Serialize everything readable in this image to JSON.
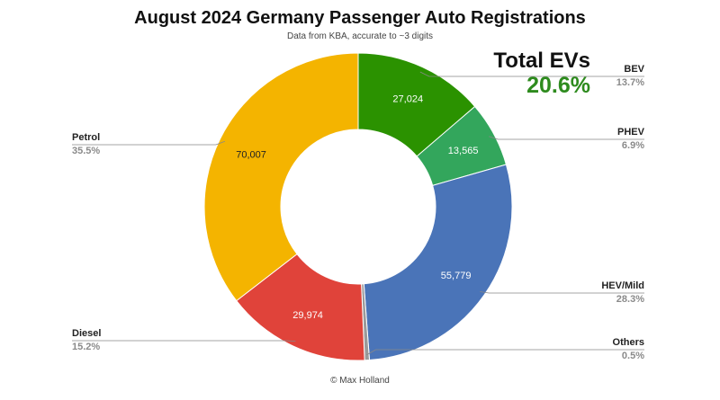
{
  "title": "August 2024 Germany Passenger Auto Registrations",
  "subtitle": "Data from KBA, accurate to ~3 digits",
  "credit": "© Max Holland",
  "callout": {
    "label": "Total EVs",
    "value": "20.6%",
    "color": "#2e8b1e"
  },
  "chart_data": {
    "type": "pie",
    "style": "donut",
    "title": "August 2024 Germany Passenger Auto Registrations",
    "subtitle": "Data from KBA, accurate to ~3 digits",
    "slices": [
      {
        "name": "BEV",
        "value": 27024,
        "value_label": "27,024",
        "percent": "13.7%",
        "color": "#2b9200",
        "side": "right"
      },
      {
        "name": "PHEV",
        "value": 13565,
        "value_label": "13,565",
        "percent": "6.9%",
        "color": "#33a65c",
        "side": "right"
      },
      {
        "name": "HEV/Mild",
        "value": 55779,
        "value_label": "55,779",
        "percent": "28.3%",
        "color": "#4a74b8",
        "side": "right"
      },
      {
        "name": "Others",
        "value": 985,
        "value_label": "",
        "percent": "0.5%",
        "color": "#9a9a9a",
        "side": "right"
      },
      {
        "name": "Diesel",
        "value": 29974,
        "value_label": "29,974",
        "percent": "15.2%",
        "color": "#e0433a",
        "side": "left"
      },
      {
        "name": "Petrol",
        "value": 70007,
        "value_label": "70,007",
        "percent": "35.5%",
        "color": "#f4b400",
        "side": "left"
      }
    ],
    "start_angle_deg": 0,
    "direction": "clockwise",
    "legend": "outside labels with leader lines"
  }
}
